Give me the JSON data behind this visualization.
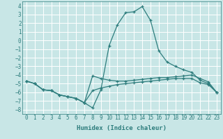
{
  "title": "",
  "xlabel": "Humidex (Indice chaleur)",
  "xlim": [
    -0.5,
    23.5
  ],
  "ylim": [
    -8.5,
    4.5
  ],
  "yticks": [
    -8,
    -7,
    -6,
    -5,
    -4,
    -3,
    -2,
    -1,
    0,
    1,
    2,
    3,
    4
  ],
  "xticks": [
    0,
    1,
    2,
    3,
    4,
    5,
    6,
    7,
    8,
    9,
    10,
    11,
    12,
    13,
    14,
    15,
    16,
    17,
    18,
    19,
    20,
    21,
    22,
    23
  ],
  "background_color": "#c8e6e6",
  "grid_color": "#ffffff",
  "line_color": "#2e7d7d",
  "lines": [
    {
      "x": [
        0,
        1,
        2,
        3,
        4,
        5,
        6,
        7,
        8,
        9,
        10,
        11,
        12,
        13,
        14,
        15,
        16,
        17,
        18,
        19,
        20,
        21,
        22,
        23
      ],
      "y": [
        -4.7,
        -5.0,
        -5.7,
        -5.8,
        -6.3,
        -6.5,
        -6.7,
        -7.2,
        -7.8,
        -5.7,
        -0.6,
        1.8,
        3.2,
        3.3,
        3.9,
        2.3,
        -1.2,
        -2.5,
        -3.0,
        -3.4,
        -3.7,
        -4.6,
        -5.0,
        -6.0
      ]
    },
    {
      "x": [
        0,
        1,
        2,
        3,
        4,
        5,
        6,
        7,
        8,
        9,
        10,
        11,
        12,
        13,
        14,
        15,
        16,
        17,
        18,
        19,
        20,
        21,
        22,
        23
      ],
      "y": [
        -4.7,
        -5.0,
        -5.7,
        -5.8,
        -6.3,
        -6.5,
        -6.7,
        -7.2,
        -4.1,
        -4.4,
        -4.6,
        -4.7,
        -4.7,
        -4.6,
        -4.5,
        -4.4,
        -4.3,
        -4.3,
        -4.2,
        -4.1,
        -4.0,
        -4.4,
        -4.8,
        -6.0
      ]
    },
    {
      "x": [
        0,
        1,
        2,
        3,
        4,
        5,
        6,
        7,
        8,
        9,
        10,
        11,
        12,
        13,
        14,
        15,
        16,
        17,
        18,
        19,
        20,
        21,
        22,
        23
      ],
      "y": [
        -4.7,
        -5.0,
        -5.7,
        -5.8,
        -6.3,
        -6.5,
        -6.7,
        -7.2,
        -5.8,
        -5.5,
        -5.3,
        -5.1,
        -5.0,
        -4.9,
        -4.8,
        -4.7,
        -4.6,
        -4.5,
        -4.4,
        -4.4,
        -4.4,
        -4.9,
        -5.1,
        -6.0
      ]
    }
  ]
}
